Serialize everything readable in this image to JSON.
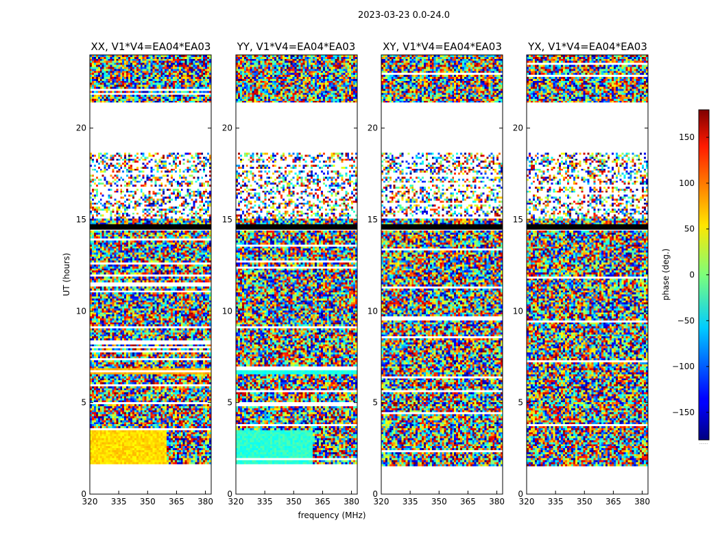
{
  "chart_data": {
    "type": "heatmap",
    "title": "2023-03-23 0.0-24.0",
    "xlabel": "frequency (MHz)",
    "ylabel": "UT (hours)",
    "xlim": [
      320,
      383
    ],
    "ylim": [
      0,
      24
    ],
    "xticks": [
      "320",
      "335",
      "350",
      "365",
      "380"
    ],
    "yticks": [
      "0",
      "5",
      "10",
      "15",
      "20"
    ],
    "colorbar": {
      "label": "phase (deg.)",
      "range": [
        -180,
        180
      ],
      "ticks": [
        "150",
        "100",
        "50",
        "0",
        "−50",
        "−100",
        "−150"
      ],
      "below_text": "....."
    },
    "flagged_ut_ranges": [
      [
        0,
        1.5
      ],
      [
        18.7,
        21.4
      ],
      [
        14.45,
        14.75
      ]
    ],
    "panels": [
      {
        "title": "XX, V1*V4=EA04*EA03"
      },
      {
        "title": "YY, V1*V4=EA04*EA03"
      },
      {
        "title": "XY, V1*V4=EA04*EA03"
      },
      {
        "title": "YX, V1*V4=EA04*EA03"
      }
    ]
  }
}
